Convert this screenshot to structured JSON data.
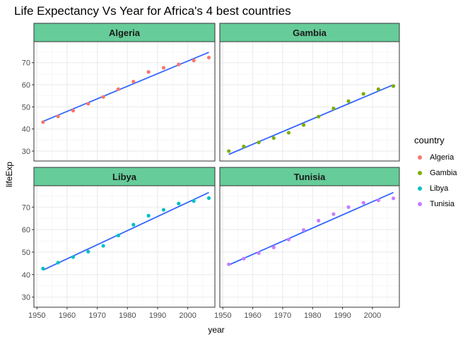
{
  "chart_data": {
    "type": "scatter",
    "title": "Life Expectancy Vs Year for Africa's 4 best countries",
    "xlabel": "year",
    "ylabel": "lifeExp",
    "xlim": [
      1949,
      2009
    ],
    "ylim": [
      25.5,
      79.5
    ],
    "x_ticks": [
      1950,
      1960,
      1970,
      1980,
      1990,
      2000
    ],
    "y_ticks": [
      30,
      40,
      50,
      60,
      70
    ],
    "facets": [
      "Algeria",
      "Gambia",
      "Libya",
      "Tunisia"
    ],
    "legend_title": "country",
    "legend_position": "right",
    "grid": true,
    "strip_color": "#66cc99",
    "trend_color": "#3366ff",
    "series": [
      {
        "name": "Algeria",
        "color": "#f8766d",
        "x": [
          1952,
          1957,
          1962,
          1967,
          1972,
          1977,
          1982,
          1987,
          1992,
          1997,
          2002,
          2007
        ],
        "y": [
          43.1,
          45.7,
          48.3,
          51.4,
          54.5,
          58.0,
          61.4,
          65.8,
          67.7,
          69.2,
          71.0,
          72.3
        ],
        "trend": [
          [
            1952,
            43.4
          ],
          [
            2007,
            74.7
          ]
        ]
      },
      {
        "name": "Gambia",
        "color": "#7cae00",
        "x": [
          1952,
          1957,
          1962,
          1967,
          1972,
          1977,
          1982,
          1987,
          1992,
          1997,
          2002,
          2007
        ],
        "y": [
          30.0,
          32.1,
          33.9,
          35.9,
          38.3,
          41.8,
          45.6,
          49.3,
          52.6,
          55.9,
          58.0,
          59.4
        ],
        "trend": [
          [
            1952,
            28.5
          ],
          [
            2007,
            60.0
          ]
        ]
      },
      {
        "name": "Libya",
        "color": "#00bfc4",
        "x": [
          1952,
          1957,
          1962,
          1967,
          1972,
          1977,
          1982,
          1987,
          1992,
          1997,
          2002,
          2007
        ],
        "y": [
          42.7,
          45.3,
          47.8,
          50.2,
          52.8,
          57.4,
          62.2,
          66.2,
          68.8,
          71.6,
          72.7,
          74.0
        ],
        "trend": [
          [
            1952,
            42.0
          ],
          [
            2007,
            76.5
          ]
        ]
      },
      {
        "name": "Tunisia",
        "color": "#c77cff",
        "x": [
          1952,
          1957,
          1962,
          1967,
          1972,
          1977,
          1982,
          1987,
          1992,
          1997,
          2002,
          2007
        ],
        "y": [
          44.6,
          47.1,
          49.6,
          52.1,
          55.6,
          59.8,
          64.0,
          66.9,
          70.0,
          71.9,
          73.0,
          73.9
        ],
        "trend": [
          [
            1952,
            44.3
          ],
          [
            2007,
            76.5
          ]
        ]
      }
    ]
  }
}
